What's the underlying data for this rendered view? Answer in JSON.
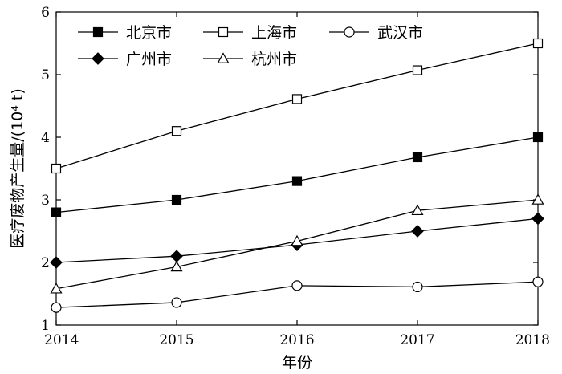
{
  "chart_data": {
    "type": "line",
    "title": "",
    "xlabel": "年份",
    "ylabel": "医疗废物产生量/(10⁴ t)",
    "x": [
      2014,
      2015,
      2016,
      2017,
      2018
    ],
    "xlim": [
      2014,
      2018
    ],
    "ylim": [
      1,
      6
    ],
    "yticks": [
      "1",
      "2",
      "3",
      "4",
      "5",
      "6"
    ],
    "xticks": [
      "2014",
      "2015",
      "2016",
      "2017",
      "2018"
    ],
    "grid": false,
    "legend_position": "top-left",
    "series": [
      {
        "name": "北京市",
        "marker": "filled-square",
        "values": [
          2.8,
          3.0,
          3.3,
          3.68,
          4.0
        ]
      },
      {
        "name": "上海市",
        "marker": "open-square",
        "values": [
          3.5,
          4.1,
          4.61,
          5.07,
          5.5
        ]
      },
      {
        "name": "武汉市",
        "marker": "open-circle",
        "values": [
          1.28,
          1.36,
          1.63,
          1.61,
          1.69
        ]
      },
      {
        "name": "广州市",
        "marker": "filled-diamond",
        "values": [
          2.0,
          2.1,
          2.28,
          2.5,
          2.7
        ]
      },
      {
        "name": "杭州市",
        "marker": "open-triangle",
        "values": [
          1.58,
          1.93,
          2.34,
          2.83,
          3.0
        ]
      }
    ]
  }
}
